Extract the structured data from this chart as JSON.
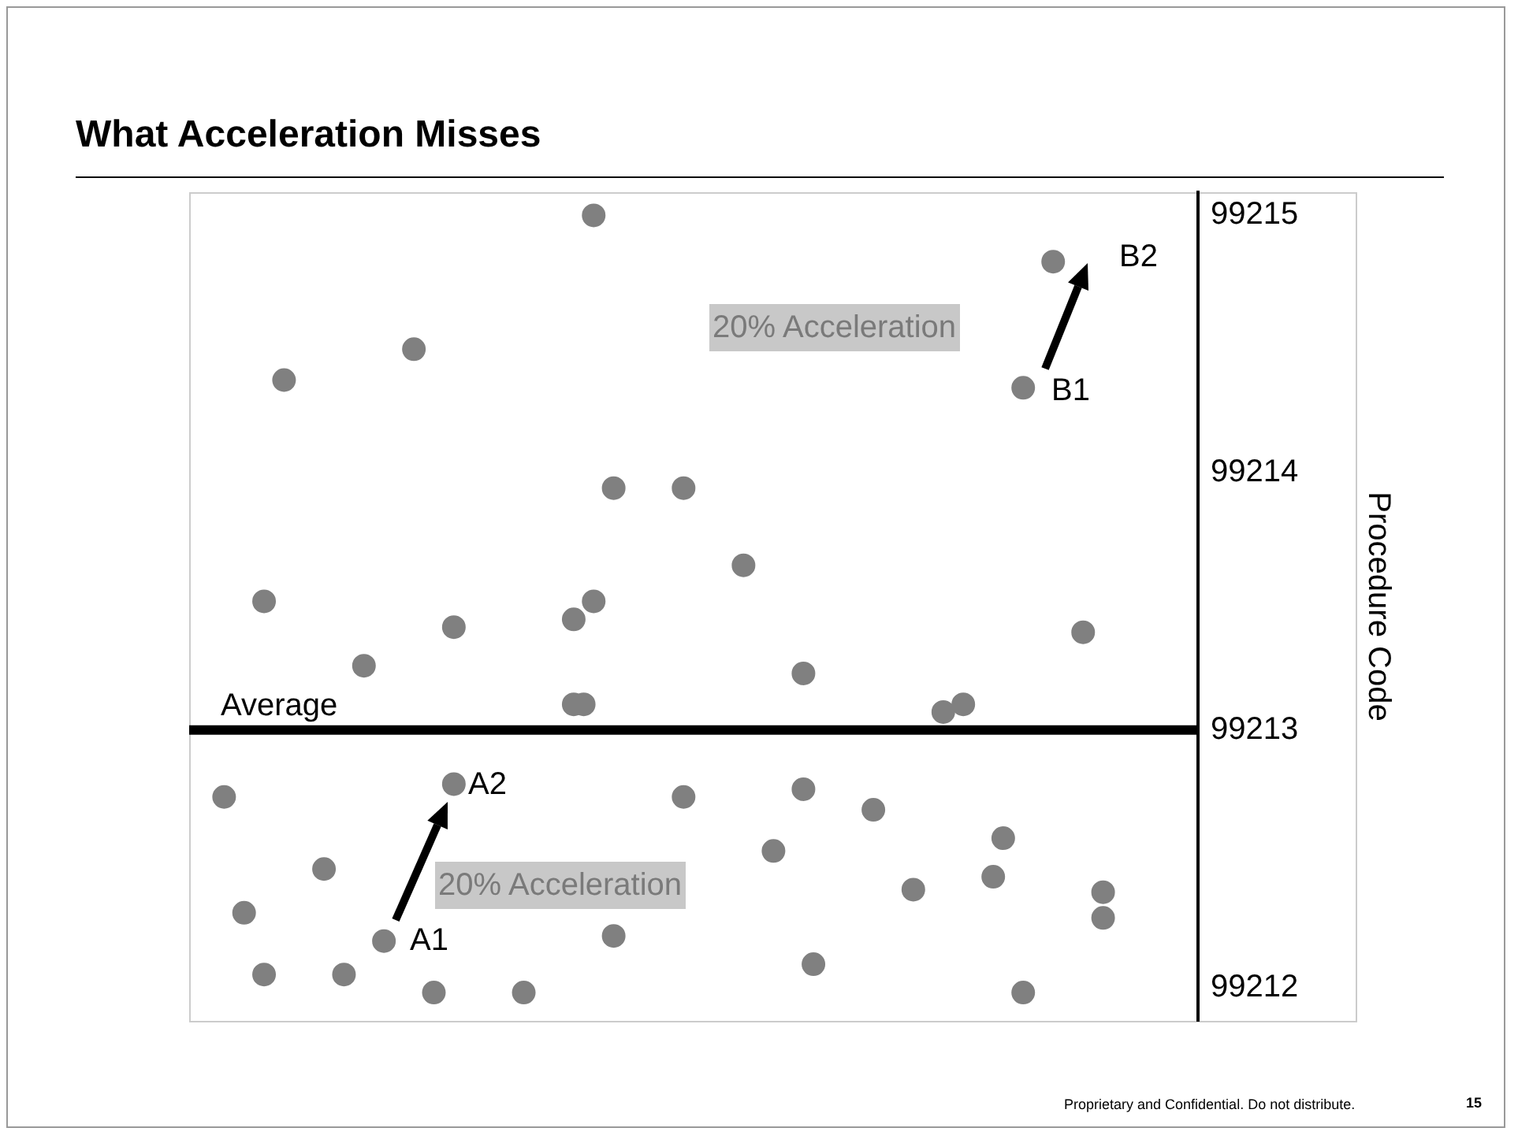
{
  "chart_data": {
    "type": "scatter",
    "title": "What Acceleration Misses",
    "ylabel": "Procedure Code",
    "marker": "circle",
    "grid": false,
    "legend": false,
    "tick_labels": "y",
    "ylim": [
      99211.87,
      99215.09
    ],
    "yticks": [
      99212,
      99213,
      99214,
      99215
    ],
    "categories": [
      null,
      null,
      null,
      null,
      null,
      null,
      null,
      null,
      null,
      null,
      null,
      null,
      null,
      null,
      null,
      null,
      null,
      null,
      null,
      null,
      null,
      null,
      null,
      null,
      null,
      null,
      null,
      null,
      null,
      null,
      null,
      null,
      null,
      null,
      null,
      null,
      null,
      null,
      null,
      null,
      null,
      null,
      null,
      null,
      null,
      null,
      null,
      null,
      null,
      null,
      null,
      null,
      null,
      null,
      null,
      null,
      null,
      null,
      null,
      null,
      null,
      null,
      null,
      null,
      null,
      null,
      null,
      null,
      null,
      null,
      null,
      null,
      null,
      null,
      null,
      null,
      null,
      null,
      null,
      null,
      null,
      null,
      null,
      null,
      null,
      null,
      null,
      null,
      null,
      null,
      null,
      null,
      null,
      null,
      null,
      null,
      null,
      null,
      null,
      null,
      null
    ],
    "series": [
      {
        "color": "#808080",
        "values": [
          null,
          null,
          null,
          99212.74,
          null,
          99212.29,
          null,
          99213.5,
          null,
          99214.36,
          null,
          null,
          null,
          99212.46,
          null,
          99212.05,
          null,
          99213.25,
          null,
          99212.18,
          null,
          null,
          99214.48,
          null,
          99211.98,
          null,
          99213.4,
          null,
          null,
          null,
          null,
          null,
          null,
          99211.98,
          null,
          null,
          null,
          null,
          99213.43,
          99213.1,
          99215.0,
          null,
          99213.94,
          null,
          null,
          null,
          null,
          null,
          null,
          99213.94,
          null,
          null,
          null,
          null,
          null,
          99213.64,
          null,
          null,
          99212.53,
          null,
          null,
          99213.22,
          99212.09,
          null,
          null,
          null,
          null,
          null,
          99212.69,
          null,
          null,
          null,
          99212.38,
          null,
          null,
          99213.07,
          null,
          99213.1,
          null,
          null,
          99212.43,
          99212.58,
          null,
          99214.33,
          null,
          null,
          99214.82,
          null,
          null,
          99213.38,
          null,
          99212.37,
          null,
          null,
          null,
          null,
          null,
          null,
          null,
          null,
          null
        ]
      },
      {
        "color": "#808080",
        "values": [
          null,
          null,
          null,
          null,
          null,
          null,
          null,
          99212.05,
          null,
          null,
          null,
          null,
          null,
          null,
          null,
          null,
          null,
          null,
          null,
          null,
          null,
          null,
          null,
          null,
          null,
          null,
          99212.79,
          null,
          null,
          null,
          null,
          null,
          null,
          null,
          null,
          null,
          null,
          null,
          99213.1,
          null,
          99213.5,
          null,
          99212.2,
          null,
          null,
          null,
          null,
          null,
          null,
          99212.74,
          null,
          null,
          null,
          null,
          null,
          null,
          null,
          null,
          null,
          null,
          null,
          99212.77,
          null,
          null,
          null,
          null,
          null,
          null,
          null,
          null,
          null,
          null,
          null,
          null,
          null,
          null,
          null,
          null,
          null,
          null,
          null,
          null,
          null,
          99211.98,
          null,
          null,
          null,
          null,
          null,
          null,
          null,
          99212.27,
          null,
          null,
          null,
          null,
          null,
          null,
          null,
          null,
          null
        ]
      }
    ],
    "ref_lines": [
      {
        "axis": "y",
        "value": 99213,
        "label": "Average",
        "color": "#000000"
      }
    ],
    "annotations": [
      "A1",
      "A2",
      "20% Acceleration",
      "B1",
      "B2",
      "20% Acceleration",
      "Proprietary and Confidential. Do not distribute.",
      "15"
    ]
  }
}
